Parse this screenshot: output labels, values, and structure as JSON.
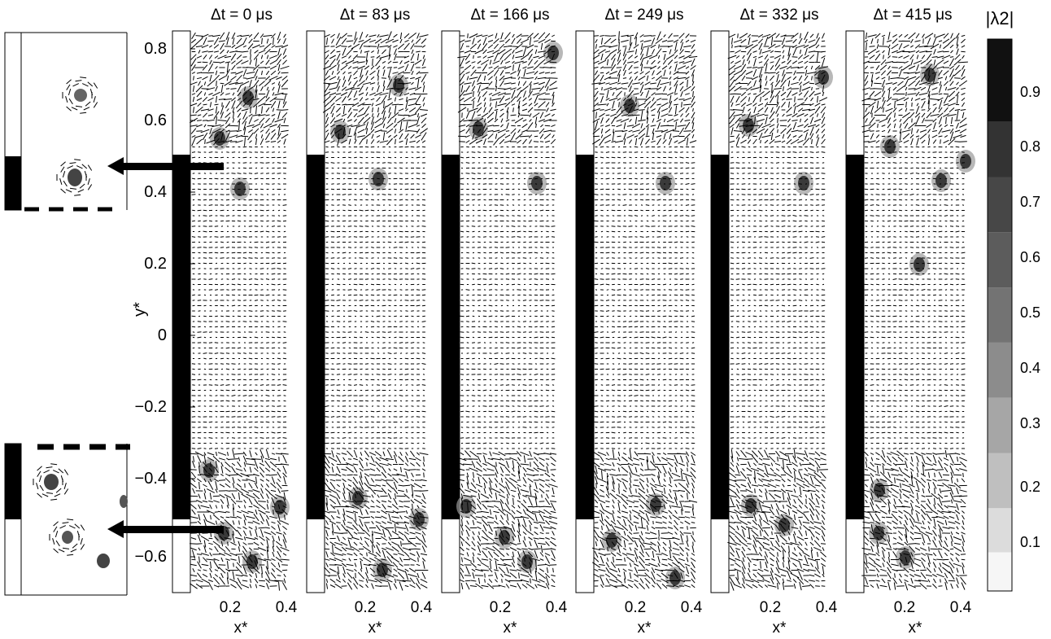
{
  "figure": {
    "y_axis": {
      "label": "y*",
      "ticks": [
        "0.8",
        "0.6",
        "0.4",
        "0.2",
        "0",
        "−0.2",
        "−0.4",
        "−0.6"
      ],
      "values": [
        0.8,
        0.6,
        0.4,
        0.2,
        0,
        -0.2,
        -0.4,
        -0.6
      ]
    },
    "x_axis": {
      "label": "x*",
      "ticks": [
        "0.2",
        "0.4"
      ],
      "values": [
        0.2,
        0.4
      ]
    },
    "panels": [
      {
        "title": "Δt = 0 μs"
      },
      {
        "title": "Δt = 83 μs"
      },
      {
        "title": "Δt = 166 μs"
      },
      {
        "title": "Δt = 249 μs"
      },
      {
        "title": "Δt = 332 μs"
      },
      {
        "title": "Δt = 415 μs"
      }
    ],
    "colorbar": {
      "label": "|λ2|",
      "ticks": [
        "0.9",
        "0.8",
        "0.7",
        "0.6",
        "0.5",
        "0.4",
        "0.3",
        "0.2",
        "0.1"
      ],
      "values": [
        0.9,
        0.8,
        0.7,
        0.6,
        0.5,
        0.4,
        0.3,
        0.2,
        0.1
      ],
      "range": [
        0,
        1
      ]
    },
    "colors": {
      "ink": "#000000",
      "background": "#ffffff"
    }
  }
}
